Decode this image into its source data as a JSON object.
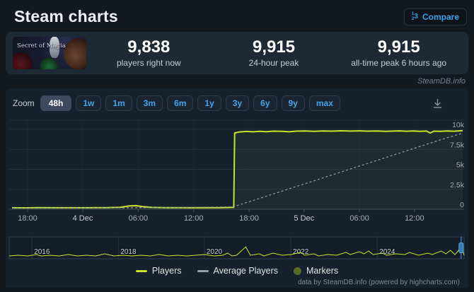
{
  "header": {
    "title": "Steam charts",
    "compare_label": "Compare"
  },
  "stats": {
    "game_title": "Secret of Magia",
    "metrics": [
      {
        "value": "9,838",
        "label": "players right now"
      },
      {
        "value": "9,915",
        "label": "24-hour peak"
      },
      {
        "value": "9,915",
        "label": "all-time peak 6 hours ago"
      }
    ]
  },
  "watermark": "SteamDB.info",
  "toolbar": {
    "zoom_label": "Zoom",
    "ranges": [
      "48h",
      "1w",
      "1m",
      "3m",
      "6m",
      "1y",
      "3y",
      "6y",
      "9y",
      "max"
    ],
    "selected": "48h"
  },
  "chart_data": {
    "type": "line",
    "title": "Steam charts — concurrent players (48h)",
    "ylim": [
      0,
      11150
    ],
    "grid": true,
    "legend_position": "bottom",
    "y_axis": {
      "side": "right",
      "ticks": [
        {
          "v": 10000,
          "label": "10k"
        },
        {
          "v": 7500,
          "label": "7.5k"
        },
        {
          "v": 5000,
          "label": "5k"
        },
        {
          "v": 2500,
          "label": "2.5k"
        },
        {
          "v": 0,
          "label": "0"
        }
      ]
    },
    "x_axis": {
      "ticks": [
        {
          "pos": 0.0345,
          "label": "18:00",
          "kind": "time"
        },
        {
          "pos": 0.157,
          "label": "4 Dec",
          "kind": "date"
        },
        {
          "pos": 0.28,
          "label": "06:00",
          "kind": "time"
        },
        {
          "pos": 0.403,
          "label": "12:00",
          "kind": "time"
        },
        {
          "pos": 0.526,
          "label": "18:00",
          "kind": "time"
        },
        {
          "pos": 0.648,
          "label": "5 Dec",
          "kind": "date"
        },
        {
          "pos": 0.771,
          "label": "06:00",
          "kind": "time"
        },
        {
          "pos": 0.893,
          "label": "12:00",
          "kind": "time"
        }
      ]
    },
    "series": [
      {
        "name": "Players",
        "color": "#c9e52b",
        "dashed": false,
        "fill": "rgba(201,229,43,0.05)",
        "points": [
          [
            0,
            190
          ],
          [
            0.03,
            180
          ],
          [
            0.06,
            195
          ],
          [
            0.09,
            185
          ],
          [
            0.12,
            190
          ],
          [
            0.15,
            185
          ],
          [
            0.18,
            195
          ],
          [
            0.21,
            200
          ],
          [
            0.24,
            240
          ],
          [
            0.26,
            420
          ],
          [
            0.275,
            450
          ],
          [
            0.29,
            340
          ],
          [
            0.31,
            230
          ],
          [
            0.34,
            200
          ],
          [
            0.37,
            195
          ],
          [
            0.4,
            190
          ],
          [
            0.43,
            195
          ],
          [
            0.46,
            205
          ],
          [
            0.48,
            220
          ],
          [
            0.492,
            240
          ],
          [
            0.494,
            9560
          ],
          [
            0.505,
            9680
          ],
          [
            0.52,
            9740
          ],
          [
            0.535,
            9700
          ],
          [
            0.55,
            9760
          ],
          [
            0.565,
            9720
          ],
          [
            0.58,
            9780
          ],
          [
            0.6,
            9750
          ],
          [
            0.615,
            9700
          ],
          [
            0.63,
            9780
          ],
          [
            0.65,
            9800
          ],
          [
            0.67,
            9760
          ],
          [
            0.69,
            9800
          ],
          [
            0.71,
            9780
          ],
          [
            0.73,
            9820
          ],
          [
            0.75,
            9790
          ],
          [
            0.77,
            9810
          ],
          [
            0.79,
            9780
          ],
          [
            0.81,
            9800
          ],
          [
            0.83,
            9750
          ],
          [
            0.845,
            9790
          ],
          [
            0.86,
            9810
          ],
          [
            0.875,
            9770
          ],
          [
            0.89,
            9800
          ],
          [
            0.905,
            9760
          ],
          [
            0.92,
            9790
          ],
          [
            0.928,
            9550
          ],
          [
            0.936,
            9780
          ],
          [
            0.95,
            9760
          ],
          [
            0.965,
            9800
          ],
          [
            0.98,
            9770
          ],
          [
            1,
            9838
          ]
        ]
      },
      {
        "name": "Average Players",
        "color": "#97a0a8",
        "dashed": true,
        "fill": null,
        "points": [
          [
            0,
            140
          ],
          [
            0.08,
            150
          ],
          [
            0.16,
            165
          ],
          [
            0.24,
            185
          ],
          [
            0.32,
            205
          ],
          [
            0.4,
            235
          ],
          [
            0.46,
            270
          ],
          [
            0.49,
            300
          ],
          [
            0.52,
            830
          ],
          [
            0.56,
            1560
          ],
          [
            0.6,
            2290
          ],
          [
            0.64,
            3020
          ],
          [
            0.68,
            3750
          ],
          [
            0.72,
            4480
          ],
          [
            0.76,
            5210
          ],
          [
            0.8,
            5940
          ],
          [
            0.84,
            6670
          ],
          [
            0.88,
            7400
          ],
          [
            0.92,
            8130
          ],
          [
            0.96,
            8860
          ],
          [
            1,
            9530
          ]
        ]
      }
    ],
    "navigator": {
      "years": [
        {
          "label": "2016",
          "pos": 0.05
        },
        {
          "label": "2018",
          "pos": 0.24
        },
        {
          "label": "2020",
          "pos": 0.429
        },
        {
          "label": "2022",
          "pos": 0.619
        },
        {
          "label": "2024",
          "pos": 0.809
        }
      ],
      "handle_pos": 0.9935,
      "spikes": [
        [
          0,
          1
        ],
        [
          0.02,
          2
        ],
        [
          0.04,
          1
        ],
        [
          0.06,
          3
        ],
        [
          0.07,
          1
        ],
        [
          0.09,
          2
        ],
        [
          0.11,
          1
        ],
        [
          0.13,
          3
        ],
        [
          0.15,
          1
        ],
        [
          0.17,
          2
        ],
        [
          0.19,
          1
        ],
        [
          0.21,
          4
        ],
        [
          0.23,
          1
        ],
        [
          0.25,
          2
        ],
        [
          0.27,
          1
        ],
        [
          0.29,
          2
        ],
        [
          0.31,
          1
        ],
        [
          0.33,
          3
        ],
        [
          0.35,
          1
        ],
        [
          0.37,
          2
        ],
        [
          0.39,
          1
        ],
        [
          0.41,
          2
        ],
        [
          0.43,
          3
        ],
        [
          0.45,
          1
        ],
        [
          0.47,
          2
        ],
        [
          0.48,
          5
        ],
        [
          0.49,
          1
        ],
        [
          0.5,
          2
        ],
        [
          0.52,
          14
        ],
        [
          0.53,
          2
        ],
        [
          0.55,
          4
        ],
        [
          0.56,
          1
        ],
        [
          0.58,
          5
        ],
        [
          0.6,
          2
        ],
        [
          0.62,
          3
        ],
        [
          0.64,
          6
        ],
        [
          0.65,
          2
        ],
        [
          0.67,
          4
        ],
        [
          0.68,
          1
        ],
        [
          0.7,
          3
        ],
        [
          0.72,
          2
        ],
        [
          0.74,
          6
        ],
        [
          0.75,
          3
        ],
        [
          0.77,
          7
        ],
        [
          0.78,
          4
        ],
        [
          0.79,
          8
        ],
        [
          0.8,
          3
        ],
        [
          0.82,
          5
        ],
        [
          0.83,
          2
        ],
        [
          0.85,
          4
        ],
        [
          0.87,
          3
        ],
        [
          0.88,
          6
        ],
        [
          0.9,
          2
        ],
        [
          0.92,
          5
        ],
        [
          0.93,
          3
        ],
        [
          0.95,
          8
        ],
        [
          0.96,
          4
        ],
        [
          0.97,
          9
        ],
        [
          0.98,
          3
        ],
        [
          0.995,
          14
        ],
        [
          1,
          2
        ]
      ]
    }
  },
  "legend": [
    {
      "label": "Players",
      "swatch": "line",
      "color": "#c9e52b"
    },
    {
      "label": "Average Players",
      "swatch": "line",
      "color": "#97a0a8"
    },
    {
      "label": "Markers",
      "swatch": "circle",
      "color": "#5a6a24"
    }
  ],
  "footer": "data by SteamDB.info (powered by highcharts.com)",
  "colors": {
    "accent_blue": "#46a4e8",
    "players_line": "#c9e52b",
    "panel": "#17212d"
  }
}
